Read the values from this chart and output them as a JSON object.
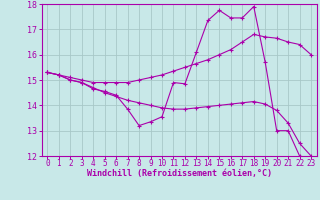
{
  "line1_x": [
    0,
    1,
    2,
    3,
    4,
    5,
    6,
    7,
    8,
    9,
    10,
    11,
    12,
    13,
    14,
    15,
    16,
    17,
    18,
    19,
    20,
    21,
    22,
    23
  ],
  "line1_y": [
    15.3,
    15.2,
    15.0,
    14.9,
    14.65,
    14.55,
    14.4,
    13.85,
    13.2,
    13.35,
    13.55,
    14.9,
    14.85,
    16.1,
    17.35,
    17.75,
    17.45,
    17.45,
    17.9,
    15.7,
    13.0,
    13.0,
    12.0,
    11.9
  ],
  "line2_x": [
    0,
    1,
    2,
    3,
    4,
    5,
    6,
    7,
    8,
    9,
    10,
    11,
    12,
    13,
    14,
    15,
    16,
    17,
    18,
    19,
    20,
    21,
    22,
    23
  ],
  "line2_y": [
    15.3,
    15.2,
    15.1,
    15.0,
    14.9,
    14.9,
    14.9,
    14.9,
    15.0,
    15.1,
    15.2,
    15.35,
    15.5,
    15.65,
    15.8,
    16.0,
    16.2,
    16.5,
    16.8,
    16.7,
    16.65,
    16.5,
    16.4,
    16.0
  ],
  "line3_x": [
    0,
    1,
    2,
    3,
    4,
    5,
    6,
    7,
    8,
    9,
    10,
    11,
    12,
    13,
    14,
    15,
    16,
    17,
    18,
    19,
    20,
    21,
    22,
    23
  ],
  "line3_y": [
    15.3,
    15.2,
    15.0,
    14.9,
    14.7,
    14.5,
    14.35,
    14.2,
    14.1,
    14.0,
    13.9,
    13.85,
    13.85,
    13.9,
    13.95,
    14.0,
    14.05,
    14.1,
    14.15,
    14.05,
    13.8,
    13.3,
    12.5,
    12.0
  ],
  "color": "#AA00AA",
  "bg_color": "#C8E8E8",
  "grid_color": "#A8C8C8",
  "xlabel": "Windchill (Refroidissement éolien,°C)",
  "xlim_min": -0.5,
  "xlim_max": 23.5,
  "ylim": [
    12,
    18
  ],
  "yticks": [
    12,
    13,
    14,
    15,
    16,
    17,
    18
  ],
  "xticks": [
    0,
    1,
    2,
    3,
    4,
    5,
    6,
    7,
    8,
    9,
    10,
    11,
    12,
    13,
    14,
    15,
    16,
    17,
    18,
    19,
    20,
    21,
    22,
    23
  ],
  "marker": "+",
  "markersize": 3,
  "linewidth": 0.8,
  "tick_fontsize": 5.5,
  "xlabel_fontsize": 6.0
}
